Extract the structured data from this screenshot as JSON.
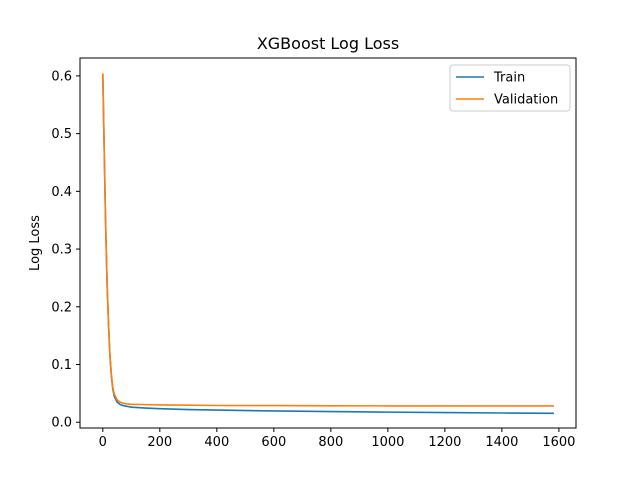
{
  "chart_data": {
    "type": "line",
    "title": "XGBoost Log Loss",
    "xlabel": "",
    "ylabel": "Log Loss",
    "xlim": [
      -80,
      1660
    ],
    "ylim": [
      -0.01,
      0.631
    ],
    "xticks": [
      0,
      200,
      400,
      600,
      800,
      1000,
      1200,
      1400,
      1600
    ],
    "xtick_labels": [
      "0",
      "200",
      "400",
      "600",
      "800",
      "1000",
      "1200",
      "1400",
      "1600"
    ],
    "yticks": [
      0.0,
      0.1,
      0.2,
      0.3,
      0.4,
      0.5,
      0.6
    ],
    "ytick_labels": [
      "0.0",
      "0.1",
      "0.2",
      "0.3",
      "0.4",
      "0.5",
      "0.6"
    ],
    "grid": false,
    "legend_position": "upper-right",
    "series": [
      {
        "name": "Train",
        "color": "#1f77b4",
        "x": [
          0,
          2,
          5,
          8,
          10,
          15,
          20,
          25,
          30,
          35,
          40,
          50,
          60,
          70,
          80,
          100,
          150,
          200,
          300,
          400,
          600,
          800,
          1000,
          1200,
          1400,
          1580
        ],
        "y": [
          0.601,
          0.55,
          0.47,
          0.39,
          0.34,
          0.24,
          0.17,
          0.115,
          0.08,
          0.058,
          0.045,
          0.035,
          0.031,
          0.029,
          0.028,
          0.026,
          0.0245,
          0.0235,
          0.022,
          0.021,
          0.0195,
          0.0185,
          0.0175,
          0.0167,
          0.016,
          0.0155
        ]
      },
      {
        "name": "Validation",
        "color": "#ff7f0e",
        "x": [
          0,
          2,
          5,
          8,
          10,
          15,
          20,
          25,
          30,
          35,
          40,
          50,
          60,
          70,
          80,
          100,
          150,
          200,
          300,
          400,
          600,
          800,
          1000,
          1200,
          1400,
          1580
        ],
        "y": [
          0.603,
          0.552,
          0.472,
          0.392,
          0.342,
          0.242,
          0.172,
          0.117,
          0.083,
          0.061,
          0.049,
          0.039,
          0.035,
          0.033,
          0.032,
          0.031,
          0.0305,
          0.03,
          0.0295,
          0.029,
          0.0288,
          0.0285,
          0.0283,
          0.0282,
          0.0282,
          0.0282
        ]
      }
    ]
  }
}
